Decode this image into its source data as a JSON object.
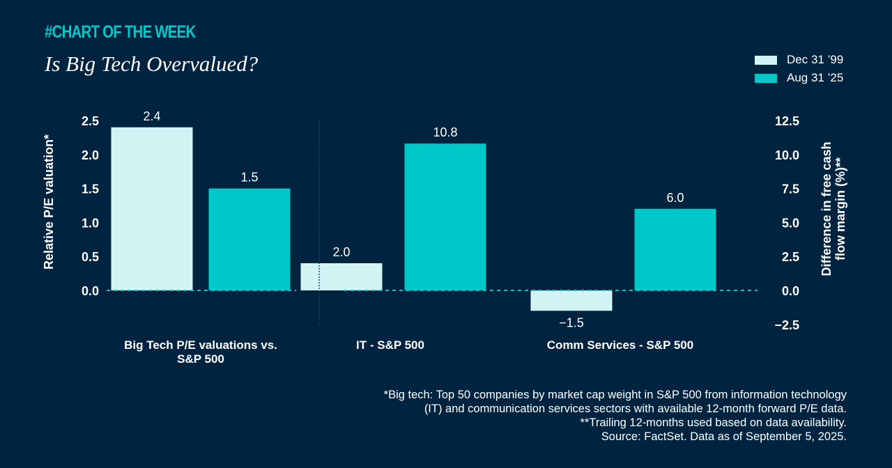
{
  "header": {
    "kicker": "#CHART OF THE WEEK",
    "title": "Is Big Tech Overvalued?"
  },
  "colors": {
    "background": "#00243f",
    "accent": "#00c8c8",
    "series_1999": "#cff4f3",
    "series_2025": "#00c8c8",
    "text": "#ffffff"
  },
  "legend": [
    {
      "label": "Dec 31 ’99",
      "color": "#cff4f3"
    },
    {
      "label": "Aug 31 ’25",
      "color": "#00c8c8"
    }
  ],
  "chart_data": [
    {
      "type": "bar",
      "title": "",
      "categories": [
        "Big Tech P/E valuations vs.\nS&P 500"
      ],
      "series": [
        {
          "name": "Dec 31 ’99",
          "values": [
            2.4
          ],
          "labels": [
            "2.4"
          ]
        },
        {
          "name": "Aug 31 ’25",
          "values": [
            1.5
          ],
          "labels": [
            "1.5"
          ]
        }
      ],
      "ylabel": "Relative P/E valuation*",
      "ylim": [
        0,
        2.5
      ],
      "yticks": [
        0.0,
        0.5,
        1.0,
        1.5,
        2.0,
        2.5
      ],
      "ytick_labels": [
        "0.0",
        "0.5",
        "1.0",
        "1.5",
        "2.0",
        "2.5"
      ],
      "axis_side": "left",
      "grid": false,
      "zero_line": "dashed"
    },
    {
      "type": "bar",
      "title": "",
      "categories": [
        "IT - S&P 500",
        "Comm Services - S&P 500"
      ],
      "series": [
        {
          "name": "Dec 31 ’99",
          "values": [
            2.0,
            -1.5
          ],
          "labels": [
            "2.0",
            "−1.5"
          ]
        },
        {
          "name": "Aug 31 ’25",
          "values": [
            10.8,
            6.0
          ],
          "labels": [
            "10.8",
            "6.0"
          ]
        }
      ],
      "ylabel": "Difference in free cash\nflow margin (%)**",
      "ylim": [
        -2.5,
        12.5
      ],
      "yticks": [
        -2.5,
        0.0,
        2.5,
        5.0,
        7.5,
        10.0,
        12.5
      ],
      "ytick_labels": [
        "−2.5",
        "0.0",
        "2.5",
        "5.0",
        "7.5",
        "10.0",
        "12.5"
      ],
      "axis_side": "right",
      "grid": false,
      "zero_line": "dashed"
    }
  ],
  "footnotes": [
    "*Big tech: Top 50 companies by market cap weight in S&P 500 from information technology",
    "(IT) and communication services sectors with available 12-month forward P/E data.",
    "**Trailing 12-months used based on data availability.",
    "Source: FactSet. Data as of September 5, 2025."
  ]
}
